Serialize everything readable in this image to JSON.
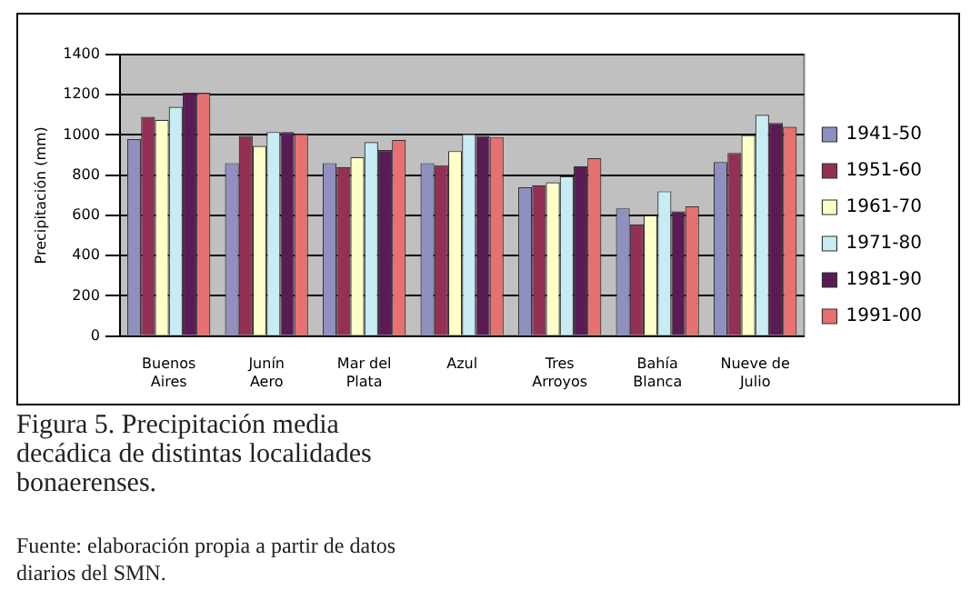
{
  "chart_data": {
    "type": "bar",
    "title": "Figura 5. Precipitación media decádica de distintas localidades bonaerenses.",
    "ylabel": "Precipitación (mm)",
    "annotations": [
      "Fuente: elaboración propia a partir de datos diarios del SMN."
    ],
    "categories": [
      "Buenos Aires",
      "Junín Aero",
      "Mar del Plata",
      "Azul",
      "Tres Arroyos",
      "Bahía Blanca",
      "Nueve de Julio"
    ],
    "series": [
      {
        "name": "1941-50",
        "color": "#9090c0",
        "values": [
          980,
          860,
          860,
          860,
          740,
          635,
          865
        ]
      },
      {
        "name": "1951-60",
        "color": "#953055",
        "values": [
          1090,
          995,
          840,
          850,
          750,
          555,
          910
        ]
      },
      {
        "name": "1961-70",
        "color": "#ffffc8",
        "values": [
          1075,
          945,
          890,
          920,
          765,
          600,
          1000
        ]
      },
      {
        "name": "1971-80",
        "color": "#c8ecf4",
        "values": [
          1140,
          1015,
          965,
          1005,
          795,
          720,
          1100
        ]
      },
      {
        "name": "1981-90",
        "color": "#5a1a55",
        "values": [
          1210,
          1015,
          925,
          995,
          845,
          620,
          1060
        ]
      },
      {
        "name": "1991-00",
        "color": "#e87070",
        "values": [
          1210,
          1005,
          975,
          990,
          885,
          645,
          1040
        ]
      }
    ],
    "ylim": [
      0,
      1400
    ],
    "yticks": [
      0,
      200,
      400,
      600,
      800,
      1000,
      1200,
      1400
    ],
    "grid": "y",
    "legend": "right"
  }
}
